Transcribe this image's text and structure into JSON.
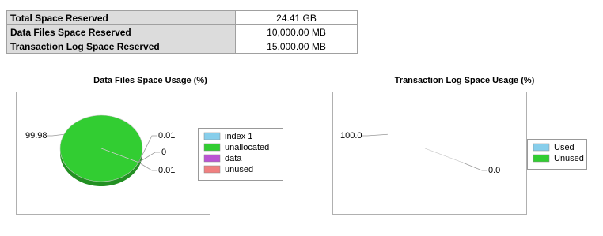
{
  "table": {
    "rows": [
      [
        "Total Space Reserved",
        "24.41 GB"
      ],
      [
        "Data Files Space Reserved",
        "10,000.00 MB"
      ],
      [
        "Transaction Log Space Reserved",
        "15,000.00 MB"
      ]
    ]
  },
  "chart_data": [
    {
      "type": "pie",
      "title": "Data Files Space Usage (%)",
      "categories": [
        "index 1",
        "unallocated",
        "data",
        "unused"
      ],
      "values": [
        0.01,
        99.98,
        0,
        0.01
      ],
      "colors": [
        "#87ceeb",
        "#32cd32",
        "#ba55d3",
        "#f08080"
      ]
    },
    {
      "type": "pie",
      "title": "Transaction Log Space Usage (%)",
      "categories": [
        "Used",
        "Unused"
      ],
      "values": [
        0,
        100
      ],
      "value_labels": [
        "0.0",
        "100.0"
      ],
      "colors": [
        "#87ceeb",
        "#32cd32"
      ]
    }
  ]
}
